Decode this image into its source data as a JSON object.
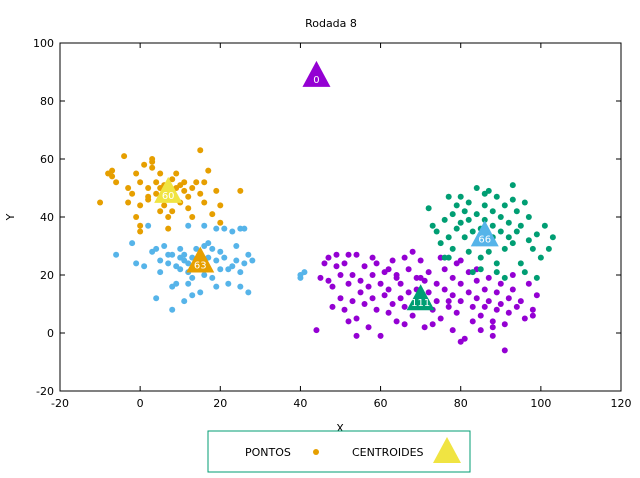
{
  "chart_data": {
    "type": "scatter",
    "title": "Rodada 8",
    "xlabel": "X",
    "ylabel": "Y",
    "xlim": [
      -20,
      120
    ],
    "ylim": [
      -20,
      100
    ],
    "xticks": [
      -20,
      0,
      20,
      40,
      60,
      80,
      100,
      120
    ],
    "yticks": [
      -20,
      0,
      20,
      40,
      60,
      80,
      100
    ],
    "grid": false,
    "legend_placement": "bottom-center",
    "legend": [
      {
        "label": "PONTOS",
        "marker": "circle",
        "color": "#e69f00"
      },
      {
        "label": "CENTROIDES",
        "marker": "triangle",
        "color": "#f0e442"
      }
    ],
    "centroids": [
      {
        "label": "0",
        "x": 44,
        "y": 89,
        "color": "#9400d3"
      },
      {
        "label": "60",
        "x": 7,
        "y": 49,
        "color": "#f0e442"
      },
      {
        "label": "63",
        "x": 15,
        "y": 25,
        "color": "#e69f00"
      },
      {
        "label": "66",
        "x": 86,
        "y": 34,
        "color": "#56b4e9"
      },
      {
        "label": "111",
        "x": 70,
        "y": 12,
        "color": "#009e73"
      }
    ],
    "series": [
      {
        "color": "#e69f00",
        "points": [
          [
            -10,
            45
          ],
          [
            -8,
            55
          ],
          [
            -7,
            56
          ],
          [
            -7,
            54
          ],
          [
            -6,
            52
          ],
          [
            -4,
            61
          ],
          [
            -3,
            50
          ],
          [
            -2,
            48
          ],
          [
            -1,
            55
          ],
          [
            0,
            52
          ],
          [
            0,
            44
          ],
          [
            -1,
            40
          ],
          [
            0,
            37
          ],
          [
            0,
            35
          ],
          [
            2,
            50
          ],
          [
            2,
            47
          ],
          [
            2,
            46
          ],
          [
            3,
            59
          ],
          [
            3,
            60
          ],
          [
            3,
            57
          ],
          [
            4,
            52
          ],
          [
            4,
            48
          ],
          [
            5,
            55
          ],
          [
            5,
            50
          ],
          [
            5,
            42
          ],
          [
            6,
            51
          ],
          [
            6,
            44
          ],
          [
            7,
            40
          ],
          [
            7,
            48
          ],
          [
            8,
            53
          ],
          [
            8,
            42
          ],
          [
            9,
            55
          ],
          [
            9,
            50
          ],
          [
            9,
            46
          ],
          [
            10,
            51
          ],
          [
            10,
            45
          ],
          [
            11,
            52
          ],
          [
            11,
            49
          ],
          [
            12,
            47
          ],
          [
            12,
            43
          ],
          [
            13,
            50
          ],
          [
            13,
            40
          ],
          [
            14,
            52
          ],
          [
            15,
            48
          ],
          [
            15,
            63
          ],
          [
            16,
            52
          ],
          [
            16,
            45
          ],
          [
            17,
            56
          ],
          [
            18,
            41
          ],
          [
            19,
            49
          ],
          [
            20,
            44
          ],
          [
            20,
            38
          ],
          [
            25,
            49
          ],
          [
            -3,
            45
          ],
          [
            1,
            58
          ],
          [
            7,
            36
          ]
        ]
      },
      {
        "color": "#56b4e9",
        "points": [
          [
            -6,
            27
          ],
          [
            -2,
            31
          ],
          [
            -1,
            24
          ],
          [
            1,
            23
          ],
          [
            3,
            28
          ],
          [
            4,
            29
          ],
          [
            5,
            25
          ],
          [
            5,
            21
          ],
          [
            6,
            30
          ],
          [
            7,
            27
          ],
          [
            7,
            24
          ],
          [
            8,
            27
          ],
          [
            8,
            16
          ],
          [
            9,
            23
          ],
          [
            10,
            26
          ],
          [
            10,
            22
          ],
          [
            10,
            29
          ],
          [
            11,
            27
          ],
          [
            11,
            25
          ],
          [
            12,
            24
          ],
          [
            12,
            21
          ],
          [
            12,
            17
          ],
          [
            13,
            26
          ],
          [
            13,
            19
          ],
          [
            14,
            29
          ],
          [
            14,
            25
          ],
          [
            14,
            23
          ],
          [
            15,
            27
          ],
          [
            15,
            22
          ],
          [
            15,
            14
          ],
          [
            16,
            30
          ],
          [
            16,
            24
          ],
          [
            16,
            20
          ],
          [
            17,
            31
          ],
          [
            17,
            26
          ],
          [
            17,
            22
          ],
          [
            18,
            29
          ],
          [
            18,
            19
          ],
          [
            19,
            36
          ],
          [
            19,
            25
          ],
          [
            19,
            16
          ],
          [
            20,
            28
          ],
          [
            20,
            22
          ],
          [
            21,
            36
          ],
          [
            21,
            26
          ],
          [
            22,
            22
          ],
          [
            22,
            17
          ],
          [
            23,
            35
          ],
          [
            23,
            23
          ],
          [
            24,
            30
          ],
          [
            24,
            25
          ],
          [
            25,
            36
          ],
          [
            25,
            21
          ],
          [
            25,
            16
          ],
          [
            26,
            36
          ],
          [
            26,
            24
          ],
          [
            27,
            27
          ],
          [
            27,
            14
          ],
          [
            28,
            25
          ],
          [
            8,
            8
          ],
          [
            11,
            11
          ],
          [
            13,
            13
          ],
          [
            4,
            12
          ],
          [
            40,
            20
          ],
          [
            40,
            19
          ],
          [
            41,
            21
          ],
          [
            16,
            37
          ],
          [
            12,
            37
          ],
          [
            2,
            37
          ],
          [
            9,
            17
          ]
        ]
      },
      {
        "color": "#9400d3",
        "points": [
          [
            44,
            1
          ],
          [
            45,
            19
          ],
          [
            46,
            24
          ],
          [
            47,
            26
          ],
          [
            47,
            18
          ],
          [
            48,
            16
          ],
          [
            48,
            9
          ],
          [
            49,
            23
          ],
          [
            49,
            27
          ],
          [
            50,
            20
          ],
          [
            50,
            12
          ],
          [
            51,
            24
          ],
          [
            51,
            8
          ],
          [
            52,
            17
          ],
          [
            52,
            4
          ],
          [
            53,
            20
          ],
          [
            53,
            11
          ],
          [
            54,
            27
          ],
          [
            54,
            5
          ],
          [
            55,
            18
          ],
          [
            55,
            14
          ],
          [
            56,
            23
          ],
          [
            56,
            10
          ],
          [
            57,
            16
          ],
          [
            57,
            2
          ],
          [
            58,
            20
          ],
          [
            58,
            12
          ],
          [
            59,
            24
          ],
          [
            59,
            8
          ],
          [
            60,
            17
          ],
          [
            60,
            -1
          ],
          [
            61,
            21
          ],
          [
            61,
            13
          ],
          [
            62,
            15
          ],
          [
            62,
            7
          ],
          [
            63,
            25
          ],
          [
            63,
            10
          ],
          [
            64,
            19
          ],
          [
            64,
            4
          ],
          [
            65,
            17
          ],
          [
            65,
            12
          ],
          [
            66,
            26
          ],
          [
            66,
            9
          ],
          [
            67,
            22
          ],
          [
            67,
            14
          ],
          [
            68,
            28
          ],
          [
            68,
            6
          ],
          [
            69,
            19
          ],
          [
            69,
            15
          ],
          [
            70,
            25
          ],
          [
            70,
            9
          ],
          [
            71,
            18
          ],
          [
            71,
            2
          ],
          [
            72,
            21
          ],
          [
            72,
            14
          ],
          [
            73,
            8
          ],
          [
            73,
            3
          ],
          [
            74,
            17
          ],
          [
            74,
            11
          ],
          [
            75,
            26
          ],
          [
            75,
            5
          ],
          [
            76,
            22
          ],
          [
            76,
            15
          ],
          [
            77,
            9
          ],
          [
            78,
            19
          ],
          [
            78,
            13
          ],
          [
            78,
            1
          ],
          [
            79,
            24
          ],
          [
            79,
            7
          ],
          [
            80,
            17
          ],
          [
            80,
            11
          ],
          [
            81,
            -2
          ],
          [
            82,
            21
          ],
          [
            82,
            14
          ],
          [
            83,
            9
          ],
          [
            83,
            4
          ],
          [
            84,
            18
          ],
          [
            84,
            12
          ],
          [
            85,
            6
          ],
          [
            85,
            1
          ],
          [
            86,
            15
          ],
          [
            86,
            9
          ],
          [
            87,
            19
          ],
          [
            87,
            11
          ],
          [
            88,
            4
          ],
          [
            88,
            -1
          ],
          [
            89,
            14
          ],
          [
            89,
            8
          ],
          [
            90,
            17
          ],
          [
            90,
            10
          ],
          [
            91,
            3
          ],
          [
            91,
            -6
          ],
          [
            92,
            12
          ],
          [
            92,
            7
          ],
          [
            93,
            20
          ],
          [
            93,
            15
          ],
          [
            94,
            9
          ],
          [
            95,
            11
          ],
          [
            96,
            5
          ],
          [
            97,
            17
          ],
          [
            98,
            8
          ],
          [
            98,
            6
          ],
          [
            99,
            13
          ],
          [
            52,
            27
          ],
          [
            58,
            26
          ],
          [
            64,
            20
          ],
          [
            80,
            25
          ],
          [
            84,
            22
          ],
          [
            54,
            -1
          ],
          [
            66,
            3
          ],
          [
            80,
            -3
          ],
          [
            88,
            2
          ],
          [
            77,
            11
          ],
          [
            70,
            19
          ],
          [
            62,
            22
          ]
        ]
      },
      {
        "color": "#009e73",
        "points": [
          [
            72,
            43
          ],
          [
            73,
            37
          ],
          [
            74,
            35
          ],
          [
            75,
            31
          ],
          [
            76,
            39
          ],
          [
            77,
            47
          ],
          [
            77,
            33
          ],
          [
            77,
            26
          ],
          [
            78,
            41
          ],
          [
            78,
            29
          ],
          [
            79,
            44
          ],
          [
            79,
            36
          ],
          [
            80,
            38
          ],
          [
            80,
            47
          ],
          [
            81,
            42
          ],
          [
            81,
            33
          ],
          [
            82,
            45
          ],
          [
            82,
            39
          ],
          [
            82,
            28
          ],
          [
            83,
            35
          ],
          [
            83,
            21
          ],
          [
            84,
            41
          ],
          [
            84,
            31
          ],
          [
            84,
            50
          ],
          [
            85,
            36
          ],
          [
            85,
            26
          ],
          [
            85,
            22
          ],
          [
            86,
            44
          ],
          [
            86,
            48
          ],
          [
            86,
            39
          ],
          [
            87,
            28
          ],
          [
            87,
            49
          ],
          [
            88,
            42
          ],
          [
            88,
            37
          ],
          [
            88,
            33
          ],
          [
            89,
            47
          ],
          [
            89,
            24
          ],
          [
            89,
            21
          ],
          [
            90,
            40
          ],
          [
            90,
            35
          ],
          [
            91,
            44
          ],
          [
            91,
            29
          ],
          [
            91,
            19
          ],
          [
            92,
            38
          ],
          [
            92,
            33
          ],
          [
            93,
            51
          ],
          [
            93,
            46
          ],
          [
            93,
            31
          ],
          [
            94,
            42
          ],
          [
            94,
            35
          ],
          [
            95,
            24
          ],
          [
            95,
            37
          ],
          [
            96,
            45
          ],
          [
            96,
            21
          ],
          [
            97,
            32
          ],
          [
            97,
            40
          ],
          [
            98,
            29
          ],
          [
            99,
            19
          ],
          [
            99,
            34
          ],
          [
            100,
            26
          ],
          [
            101,
            37
          ],
          [
            102,
            29
          ],
          [
            103,
            33
          ],
          [
            76,
            26
          ]
        ]
      }
    ]
  }
}
